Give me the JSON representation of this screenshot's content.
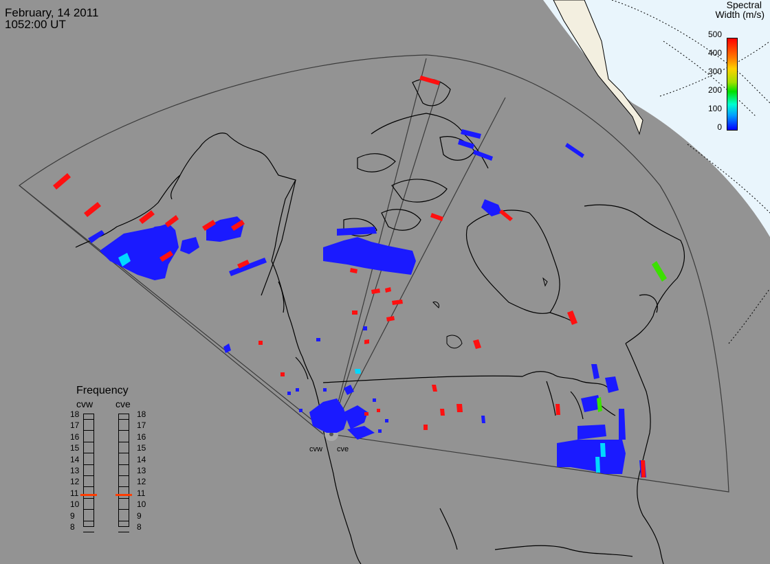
{
  "header": {
    "date": "February, 14 2011",
    "time": "1052:00 UT"
  },
  "colorbar": {
    "title_line1": "Spectral",
    "title_line2": "Width (m/s)",
    "ticks": [
      "500",
      "400",
      "300",
      "200",
      "100",
      "0"
    ],
    "scale_min": 0,
    "scale_max": 500,
    "gradient": [
      "#0000ff",
      "#00a0ff",
      "#00ffd0",
      "#00e000",
      "#a0e000",
      "#ffd000",
      "#ff8000",
      "#ff0000"
    ]
  },
  "radars": {
    "west_label": "cvw",
    "east_label": "cve"
  },
  "frequency_panel": {
    "title": "Frequency",
    "left_label": "cvw",
    "right_label": "cve",
    "scale": [
      "18",
      "17",
      "16",
      "15",
      "14",
      "13",
      "12",
      "11",
      "10",
      "9",
      "8"
    ],
    "cvw_freq_mhz": 10.8,
    "cve_freq_mhz": 10.8,
    "marker_color": "#ff3c00"
  },
  "colors": {
    "background_map": "#939393",
    "polar_region": "#e9f5fc",
    "coastline": "#000000",
    "low_width": "#1a1aff",
    "high_width": "#ff1010",
    "mid_cyan": "#00d8ff",
    "mid_green": "#3ce000"
  }
}
